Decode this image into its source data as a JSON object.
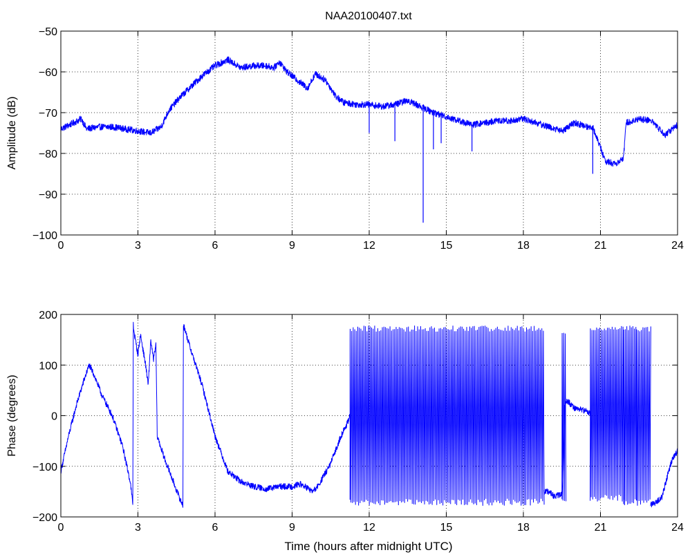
{
  "figure": {
    "title": "NAA20100407.txt",
    "line_color": "#0000ff",
    "axis_color": "#000000",
    "grid_style": "dotted"
  },
  "chart_data": [
    {
      "type": "line",
      "title": "NAA20100407.txt",
      "xlabel": "",
      "ylabel": "Amplitude (dB)",
      "xlim": [
        0,
        24
      ],
      "ylim": [
        -100,
        -50
      ],
      "xticks": [
        "0",
        "3",
        "6",
        "9",
        "12",
        "15",
        "18",
        "21",
        "24"
      ],
      "yticks": [
        "-50",
        "-60",
        "-70",
        "-80",
        "-90",
        "-100"
      ],
      "xtick_values": [
        0,
        3,
        6,
        9,
        12,
        15,
        18,
        21,
        24
      ],
      "ytick_values": [
        -50,
        -60,
        -70,
        -80,
        -90,
        -100
      ],
      "grid": true,
      "noise": 0.8,
      "series": [
        {
          "x": [
            0,
            0.5,
            0.8,
            1.0,
            1.5,
            2.0,
            2.5,
            3.0,
            3.5,
            3.9,
            4.2,
            4.6,
            5.0,
            5.5,
            6.0,
            6.5,
            7.0,
            7.5,
            8.0,
            8.3,
            8.5,
            8.8,
            9.2,
            9.6,
            9.9,
            10.3,
            10.7,
            11.0,
            11.5,
            12.0,
            12.5,
            13.0,
            13.5,
            14.0,
            14.5,
            15.0,
            15.5,
            16.0,
            16.5,
            17.0,
            17.5,
            18.0,
            18.5,
            19.0,
            19.5,
            20.0,
            20.5,
            20.7,
            21.2,
            21.6,
            21.9,
            22.0,
            22.5,
            23.0,
            23.5,
            24.0
          ],
          "values": [
            -74,
            -72.5,
            -71.5,
            -74,
            -73.5,
            -73.5,
            -74,
            -74.5,
            -75,
            -73.5,
            -69.5,
            -66.5,
            -64,
            -61,
            -58.5,
            -57,
            -59,
            -58.5,
            -58.5,
            -59,
            -57.5,
            -60,
            -62,
            -64,
            -60.5,
            -62,
            -66,
            -67.5,
            -68,
            -68,
            -68.5,
            -68,
            -67,
            -68.5,
            -70,
            -71,
            -72,
            -73,
            -72.5,
            -72,
            -72,
            -71.5,
            -72.5,
            -73.5,
            -74.5,
            -72.5,
            -73.5,
            -73.5,
            -82,
            -82.5,
            -81,
            -72.5,
            -71.5,
            -72,
            -75.5,
            -73
          ],
          "spikes": [
            {
              "x": 12.0,
              "value": -75
            },
            {
              "x": 13.0,
              "value": -77
            },
            {
              "x": 14.1,
              "value": -97
            },
            {
              "x": 14.5,
              "value": -79
            },
            {
              "x": 14.8,
              "value": -77.5
            },
            {
              "x": 16.0,
              "value": -79.5
            },
            {
              "x": 20.7,
              "value": -85
            }
          ]
        }
      ]
    },
    {
      "type": "line",
      "title": "",
      "xlabel": "Time (hours after midnight UTC)",
      "ylabel": "Phase (degrees)",
      "xlim": [
        0,
        24
      ],
      "ylim": [
        -200,
        200
      ],
      "xticks": [
        "0",
        "3",
        "6",
        "9",
        "12",
        "15",
        "18",
        "21",
        "24"
      ],
      "yticks": [
        "200",
        "100",
        "0",
        "-100",
        "-200"
      ],
      "xtick_values": [
        0,
        3,
        6,
        9,
        12,
        15,
        18,
        21,
        24
      ],
      "ytick_values": [
        200,
        100,
        0,
        -100,
        -200
      ],
      "grid": true,
      "noise": 6,
      "series": [
        {
          "x": [
            0,
            0.3,
            0.6,
            0.9,
            1.1,
            1.3,
            1.6,
            2.0,
            2.4,
            2.7,
            2.8,
            2.82,
            2.85,
            3.0,
            3.1,
            3.3,
            3.4,
            3.5,
            3.6,
            3.7,
            3.75,
            4.0,
            4.3,
            4.6,
            4.75,
            4.77,
            5.0,
            5.5,
            6.0,
            6.5,
            7.0,
            7.5,
            8.0,
            8.5,
            9.0,
            9.3,
            9.5,
            9.8,
            10.0,
            10.5,
            10.9,
            11.2,
            11.25
          ],
          "values": [
            -110,
            -40,
            20,
            70,
            100,
            80,
            40,
            0,
            -60,
            -130,
            -175,
            180,
            165,
            120,
            160,
            100,
            60,
            150,
            110,
            140,
            -40,
            -80,
            -120,
            -160,
            -178,
            180,
            140,
            60,
            -40,
            -110,
            -130,
            -140,
            -145,
            -140,
            -140,
            -135,
            -140,
            -150,
            -140,
            -95,
            -40,
            -10,
            0
          ]
        },
        {
          "x": [
            18.8,
            19.0,
            19.2,
            19.5,
            19.55,
            19.6,
            19.7,
            20.0,
            20.4,
            20.6
          ],
          "values": [
            -150,
            -150,
            -160,
            -155,
            -110,
            15,
            30,
            15,
            10,
            5
          ]
        },
        {
          "x": [
            22.95,
            23.0,
            23.2,
            23.4,
            23.6,
            23.8,
            24.0
          ],
          "values": [
            -175,
            -175,
            -170,
            -160,
            -120,
            -85,
            -70
          ]
        }
      ],
      "wrap_bands": [
        {
          "from": 11.25,
          "to": 18.8,
          "value_min": -178,
          "value_max": 178
        },
        {
          "from": 19.5,
          "to": 19.65,
          "value_min": -175,
          "value_max": 170
        },
        {
          "from": 20.6,
          "to": 21.9,
          "value_min": -170,
          "value_max": 178
        },
        {
          "from": 21.9,
          "to": 22.4,
          "value_min": -178,
          "value_max": 178
        },
        {
          "from": 22.4,
          "to": 22.95,
          "value_min": -178,
          "value_max": 178
        }
      ]
    }
  ]
}
